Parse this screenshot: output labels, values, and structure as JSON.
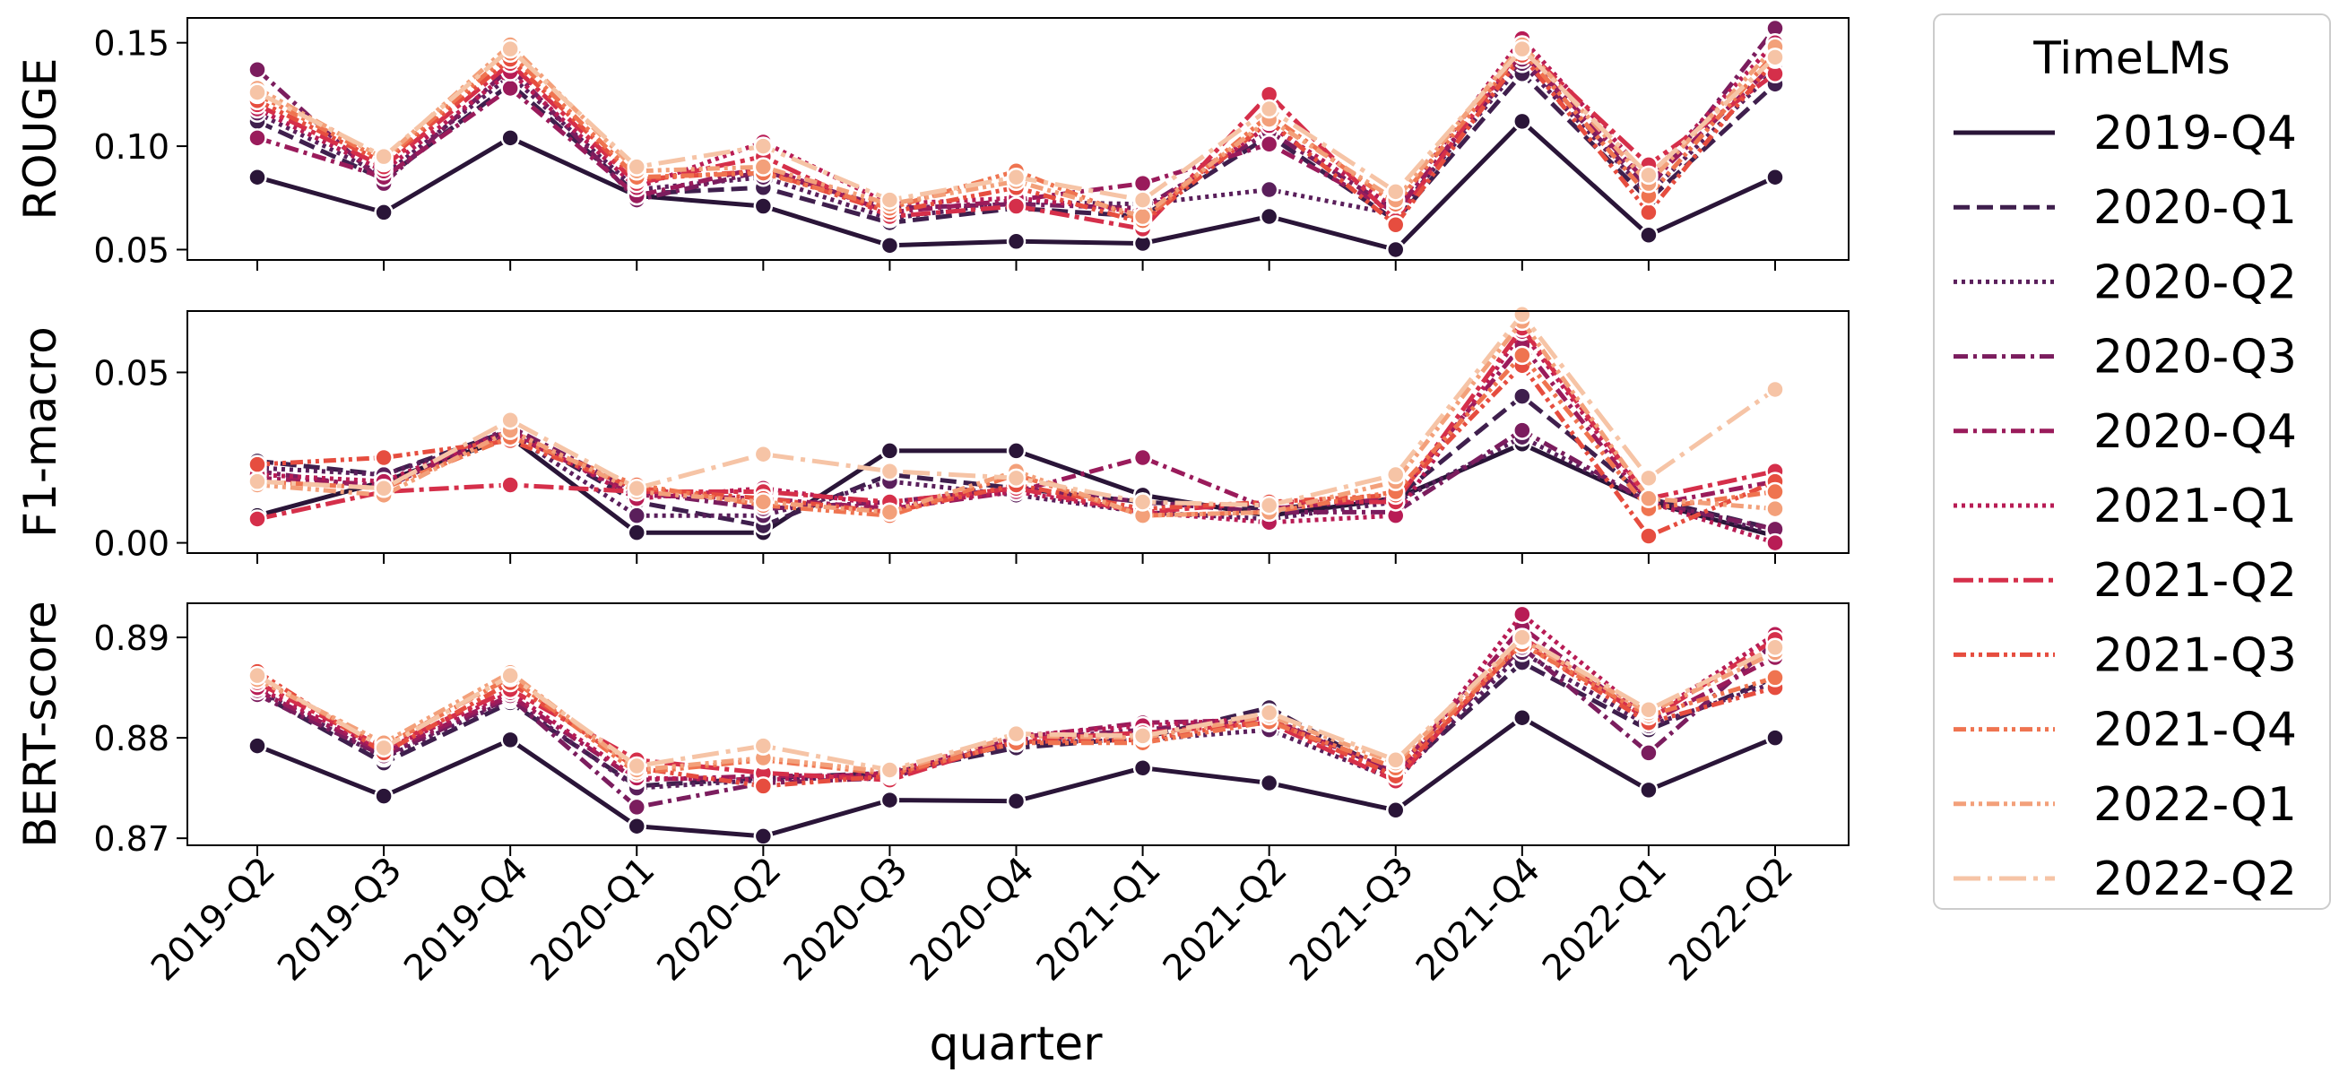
{
  "chart_data": {
    "type": "line",
    "xlabel": "quarter",
    "categories": [
      "2019-Q2",
      "2019-Q3",
      "2019-Q4",
      "2020-Q1",
      "2020-Q2",
      "2020-Q3",
      "2020-Q4",
      "2021-Q1",
      "2021-Q2",
      "2021-Q3",
      "2021-Q4",
      "2022-Q1",
      "2022-Q2"
    ],
    "legend": {
      "title": "TimeLMs",
      "placement": "outside-right",
      "entries": [
        "2019-Q4",
        "2020-Q1",
        "2020-Q2",
        "2020-Q3",
        "2020-Q4",
        "2021-Q1",
        "2021-Q2",
        "2021-Q3",
        "2021-Q4",
        "2022-Q1",
        "2022-Q2"
      ]
    },
    "series_styles": [
      {
        "name": "2019-Q4",
        "color": "#2a1538",
        "dash": "solid"
      },
      {
        "name": "2020-Q1",
        "color": "#3f1f4d",
        "dash": "dashed"
      },
      {
        "name": "2020-Q2",
        "color": "#5a1f5b",
        "dash": "dotted"
      },
      {
        "name": "2020-Q3",
        "color": "#7b1d5e",
        "dash": "dashdot"
      },
      {
        "name": "2020-Q4",
        "color": "#9a1b5b",
        "dash": "dashdot"
      },
      {
        "name": "2021-Q1",
        "color": "#b81c55",
        "dash": "dotted"
      },
      {
        "name": "2021-Q2",
        "color": "#d52f4a",
        "dash": "dashdot2"
      },
      {
        "name": "2021-Q3",
        "color": "#e64d3f",
        "dash": "dashdotdot"
      },
      {
        "name": "2021-Q4",
        "color": "#ef7450",
        "dash": "dashdotdot"
      },
      {
        "name": "2022-Q1",
        "color": "#f3a07a",
        "dash": "dashdotdot"
      },
      {
        "name": "2022-Q2",
        "color": "#f6c4a6",
        "dash": "longdashdot"
      }
    ],
    "panels": [
      {
        "ylabel": "ROUGE",
        "ylim": [
          0.045,
          0.162
        ],
        "yticks": [
          0.05,
          0.1,
          0.15
        ],
        "ytick_labels": [
          "0.05",
          "0.10",
          "0.15"
        ],
        "series": [
          {
            "name": "2019-Q4",
            "values": [
              0.085,
              0.068,
              0.104,
              0.076,
              0.071,
              0.052,
              0.054,
              0.053,
              0.066,
              0.05,
              0.112,
              0.057,
              0.085
            ]
          },
          {
            "name": "2020-Q1",
            "values": [
              0.112,
              0.084,
              0.13,
              0.077,
              0.08,
              0.063,
              0.07,
              0.066,
              0.105,
              0.064,
              0.135,
              0.074,
              0.13
            ]
          },
          {
            "name": "2020-Q2",
            "values": [
              0.116,
              0.086,
              0.134,
              0.079,
              0.085,
              0.065,
              0.073,
              0.072,
              0.079,
              0.067,
              0.14,
              0.077,
              0.137
            ]
          },
          {
            "name": "2020-Q3",
            "values": [
              0.137,
              0.082,
              0.138,
              0.074,
              0.088,
              0.07,
              0.072,
              0.07,
              0.107,
              0.069,
              0.142,
              0.079,
              0.157
            ]
          },
          {
            "name": "2020-Q4",
            "values": [
              0.104,
              0.085,
              0.128,
              0.076,
              0.09,
              0.068,
              0.074,
              0.082,
              0.101,
              0.068,
              0.145,
              0.082,
              0.14
            ]
          },
          {
            "name": "2021-Q1",
            "values": [
              0.118,
              0.088,
              0.136,
              0.08,
              0.102,
              0.072,
              0.075,
              0.068,
              0.11,
              0.07,
              0.152,
              0.085,
              0.15
            ]
          },
          {
            "name": "2021-Q2",
            "values": [
              0.12,
              0.09,
              0.14,
              0.082,
              0.095,
              0.066,
              0.071,
              0.06,
              0.125,
              0.064,
              0.148,
              0.091,
              0.135
            ]
          },
          {
            "name": "2021-Q3",
            "values": [
              0.122,
              0.092,
              0.142,
              0.084,
              0.088,
              0.068,
              0.08,
              0.063,
              0.112,
              0.062,
              0.144,
              0.068,
              0.142
            ]
          },
          {
            "name": "2021-Q4",
            "values": [
              0.125,
              0.093,
              0.145,
              0.085,
              0.087,
              0.07,
              0.088,
              0.064,
              0.115,
              0.072,
              0.146,
              0.076,
              0.145
            ]
          },
          {
            "name": "2022-Q1",
            "values": [
              0.128,
              0.094,
              0.149,
              0.088,
              0.09,
              0.072,
              0.083,
              0.066,
              0.113,
              0.074,
              0.149,
              0.082,
              0.148
            ]
          },
          {
            "name": "2022-Q2",
            "values": [
              0.126,
              0.095,
              0.147,
              0.09,
              0.1,
              0.074,
              0.085,
              0.074,
              0.118,
              0.078,
              0.147,
              0.086,
              0.143
            ]
          }
        ]
      },
      {
        "ylabel": "F1-macro",
        "ylim": [
          -0.003,
          0.068
        ],
        "yticks": [
          0.0,
          0.05
        ],
        "ytick_labels": [
          "0.00",
          "0.05"
        ],
        "series": [
          {
            "name": "2019-Q4",
            "values": [
              0.008,
              0.018,
              0.031,
              0.003,
              0.003,
              0.027,
              0.027,
              0.014,
              0.008,
              0.013,
              0.029,
              0.012,
              0.002
            ]
          },
          {
            "name": "2020-Q1",
            "values": [
              0.024,
              0.02,
              0.033,
              0.012,
              0.005,
              0.02,
              0.016,
              0.012,
              0.01,
              0.013,
              0.043,
              0.013,
              0.004
            ]
          },
          {
            "name": "2020-Q2",
            "values": [
              0.022,
              0.02,
              0.032,
              0.008,
              0.008,
              0.018,
              0.014,
              0.009,
              0.007,
              0.012,
              0.031,
              0.012,
              0.003
            ]
          },
          {
            "name": "2020-Q3",
            "values": [
              0.021,
              0.016,
              0.034,
              0.015,
              0.01,
              0.012,
              0.016,
              0.012,
              0.009,
              0.009,
              0.033,
              0.012,
              0.004
            ]
          },
          {
            "name": "2020-Q4",
            "values": [
              0.019,
              0.017,
              0.032,
              0.014,
              0.013,
              0.01,
              0.015,
              0.025,
              0.01,
              0.013,
              0.058,
              0.011,
              0.018
            ]
          },
          {
            "name": "2021-Q1",
            "values": [
              0.02,
              0.018,
              0.033,
              0.013,
              0.016,
              0.011,
              0.015,
              0.009,
              0.006,
              0.008,
              0.062,
              0.012,
              0.0
            ]
          },
          {
            "name": "2021-Q2",
            "values": [
              0.007,
              0.015,
              0.017,
              0.015,
              0.015,
              0.012,
              0.016,
              0.009,
              0.012,
              0.012,
              0.063,
              0.013,
              0.021
            ]
          },
          {
            "name": "2021-Q3",
            "values": [
              0.023,
              0.025,
              0.03,
              0.016,
              0.013,
              0.009,
              0.017,
              0.01,
              0.012,
              0.014,
              0.052,
              0.002,
              0.018
            ]
          },
          {
            "name": "2021-Q4",
            "values": [
              0.018,
              0.016,
              0.031,
              0.017,
              0.011,
              0.008,
              0.02,
              0.008,
              0.009,
              0.015,
              0.055,
              0.01,
              0.015
            ]
          },
          {
            "name": "2022-Q1",
            "values": [
              0.017,
              0.014,
              0.033,
              0.015,
              0.012,
              0.009,
              0.021,
              0.008,
              0.009,
              0.018,
              0.065,
              0.013,
              0.01
            ]
          },
          {
            "name": "2022-Q2",
            "values": [
              0.018,
              0.016,
              0.036,
              0.016,
              0.026,
              0.021,
              0.019,
              0.012,
              0.011,
              0.02,
              0.067,
              0.019,
              0.045
            ]
          }
        ]
      },
      {
        "ylabel": "BERT-score",
        "ylim": [
          0.8693,
          0.8934
        ],
        "yticks": [
          0.87,
          0.88,
          0.89
        ],
        "ytick_labels": [
          "0.87",
          "0.88",
          "0.89"
        ],
        "series": [
          {
            "name": "2019-Q4",
            "values": [
              0.8792,
              0.8742,
              0.8798,
              0.8712,
              0.8702,
              0.8738,
              0.8737,
              0.877,
              0.8755,
              0.8728,
              0.882,
              0.8748,
              0.88
            ]
          },
          {
            "name": "2020-Q1",
            "values": [
              0.8845,
              0.8775,
              0.8835,
              0.8752,
              0.876,
              0.8765,
              0.879,
              0.88,
              0.883,
              0.8762,
              0.8875,
              0.8808,
              0.886
            ]
          },
          {
            "name": "2020-Q2",
            "values": [
              0.8848,
              0.878,
              0.8838,
              0.875,
              0.8758,
              0.8762,
              0.8795,
              0.8798,
              0.8808,
              0.8758,
              0.8885,
              0.8812,
              0.8855
            ]
          },
          {
            "name": "2020-Q3",
            "values": [
              0.8843,
              0.8782,
              0.884,
              0.8731,
              0.8755,
              0.876,
              0.8798,
              0.8808,
              0.882,
              0.8765,
              0.889,
              0.8785,
              0.8895
            ]
          },
          {
            "name": "2020-Q4",
            "values": [
              0.8847,
              0.8785,
              0.8842,
              0.8758,
              0.8762,
              0.8763,
              0.88,
              0.8815,
              0.8818,
              0.8766,
              0.891,
              0.8815,
              0.888
            ]
          },
          {
            "name": "2021-Q1",
            "values": [
              0.885,
              0.8788,
              0.8845,
              0.876,
              0.8758,
              0.8765,
              0.8802,
              0.8812,
              0.882,
              0.876,
              0.8923,
              0.882,
              0.8903
            ]
          },
          {
            "name": "2021-Q2",
            "values": [
              0.8855,
              0.879,
              0.8848,
              0.8778,
              0.8765,
              0.8758,
              0.8798,
              0.8805,
              0.8815,
              0.8757,
              0.89,
              0.8818,
              0.8898
            ]
          },
          {
            "name": "2021-Q3",
            "values": [
              0.8866,
              0.8785,
              0.8855,
              0.877,
              0.8752,
              0.8762,
              0.8796,
              0.8798,
              0.8818,
              0.8762,
              0.8895,
              0.8815,
              0.885
            ]
          },
          {
            "name": "2021-Q4",
            "values": [
              0.886,
              0.8792,
              0.886,
              0.8765,
              0.8778,
              0.8764,
              0.8795,
              0.8795,
              0.8816,
              0.877,
              0.8893,
              0.8822,
              0.886
            ]
          },
          {
            "name": "2022-Q1",
            "values": [
              0.8858,
              0.8795,
              0.8865,
              0.8768,
              0.878,
              0.8766,
              0.8802,
              0.88,
              0.8822,
              0.8775,
              0.8898,
              0.8825,
              0.8885
            ]
          },
          {
            "name": "2022-Q2",
            "values": [
              0.8862,
              0.879,
              0.8862,
              0.8772,
              0.8792,
              0.8768,
              0.8804,
              0.8802,
              0.8825,
              0.8778,
              0.89,
              0.8828,
              0.889
            ]
          }
        ]
      }
    ]
  }
}
